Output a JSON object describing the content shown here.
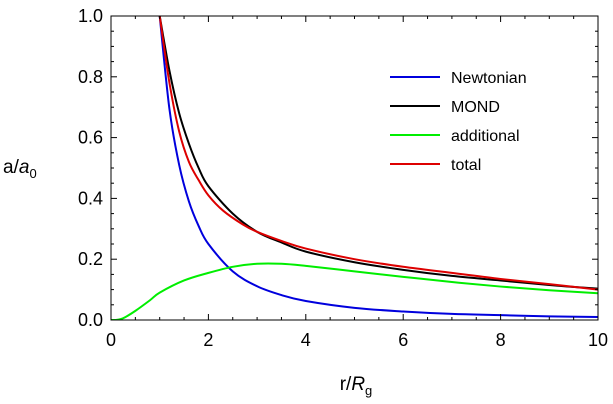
{
  "chart_data": {
    "type": "line",
    "title": "",
    "xlabel": {
      "base": "r/",
      "italic": "R",
      "sub": "g"
    },
    "ylabel": {
      "base": "a/",
      "italic": "a",
      "sub": "0"
    },
    "xlim": [
      0,
      10
    ],
    "ylim": [
      0,
      1.0
    ],
    "x_ticks": [
      0,
      2,
      4,
      6,
      8,
      10
    ],
    "x_tick_labels": [
      "0",
      "2",
      "4",
      "6",
      "8",
      "10"
    ],
    "y_ticks": [
      0.0,
      0.2,
      0.4,
      0.6,
      0.8,
      1.0
    ],
    "y_tick_labels": [
      "0.0",
      "0.2",
      "0.4",
      "0.6",
      "0.8",
      "1.0"
    ],
    "grid": false,
    "legend_position": "top-right",
    "series": [
      {
        "name": "Newtonian",
        "color": "#0000dd",
        "x": [
          1.0,
          1.2,
          1.4,
          1.6,
          1.8,
          2.0,
          2.5,
          3.0,
          3.5,
          4.0,
          5.0,
          6.0,
          7.0,
          8.0,
          9.0,
          10.0
        ],
        "y": [
          1.0,
          0.694,
          0.51,
          0.39,
          0.309,
          0.25,
          0.16,
          0.111,
          0.082,
          0.0625,
          0.04,
          0.028,
          0.02,
          0.016,
          0.012,
          0.01
        ]
      },
      {
        "name": "MOND",
        "color": "#000000",
        "x": [
          1.0,
          1.2,
          1.4,
          1.6,
          1.8,
          2.0,
          2.5,
          3.0,
          3.5,
          4.0,
          5.0,
          6.0,
          7.0,
          8.0,
          9.0,
          10.0
        ],
        "y": [
          1.0,
          0.82,
          0.68,
          0.58,
          0.5,
          0.44,
          0.35,
          0.29,
          0.255,
          0.225,
          0.19,
          0.165,
          0.145,
          0.13,
          0.115,
          0.103
        ]
      },
      {
        "name": "additional",
        "color": "#00ee00",
        "x": [
          0.0,
          0.1,
          0.2,
          0.3,
          0.5,
          0.8,
          1.0,
          1.5,
          2.0,
          2.5,
          3.0,
          3.5,
          4.0,
          5.0,
          6.0,
          7.0,
          8.0,
          9.0,
          10.0
        ],
        "y": [
          0.0,
          0.0,
          0.003,
          0.01,
          0.03,
          0.065,
          0.09,
          0.13,
          0.155,
          0.175,
          0.185,
          0.185,
          0.178,
          0.16,
          0.142,
          0.125,
          0.11,
          0.098,
          0.088
        ]
      },
      {
        "name": "total",
        "color": "#dd0000",
        "x": [
          1.0,
          1.2,
          1.4,
          1.6,
          1.8,
          2.0,
          2.3,
          2.7,
          3.0,
          3.5,
          4.0,
          5.0,
          6.0,
          7.0,
          8.0,
          9.0,
          10.0
        ],
        "y": [
          1.0,
          0.78,
          0.62,
          0.52,
          0.46,
          0.41,
          0.36,
          0.315,
          0.29,
          0.26,
          0.235,
          0.2,
          0.175,
          0.155,
          0.135,
          0.118,
          0.1
        ]
      }
    ]
  }
}
